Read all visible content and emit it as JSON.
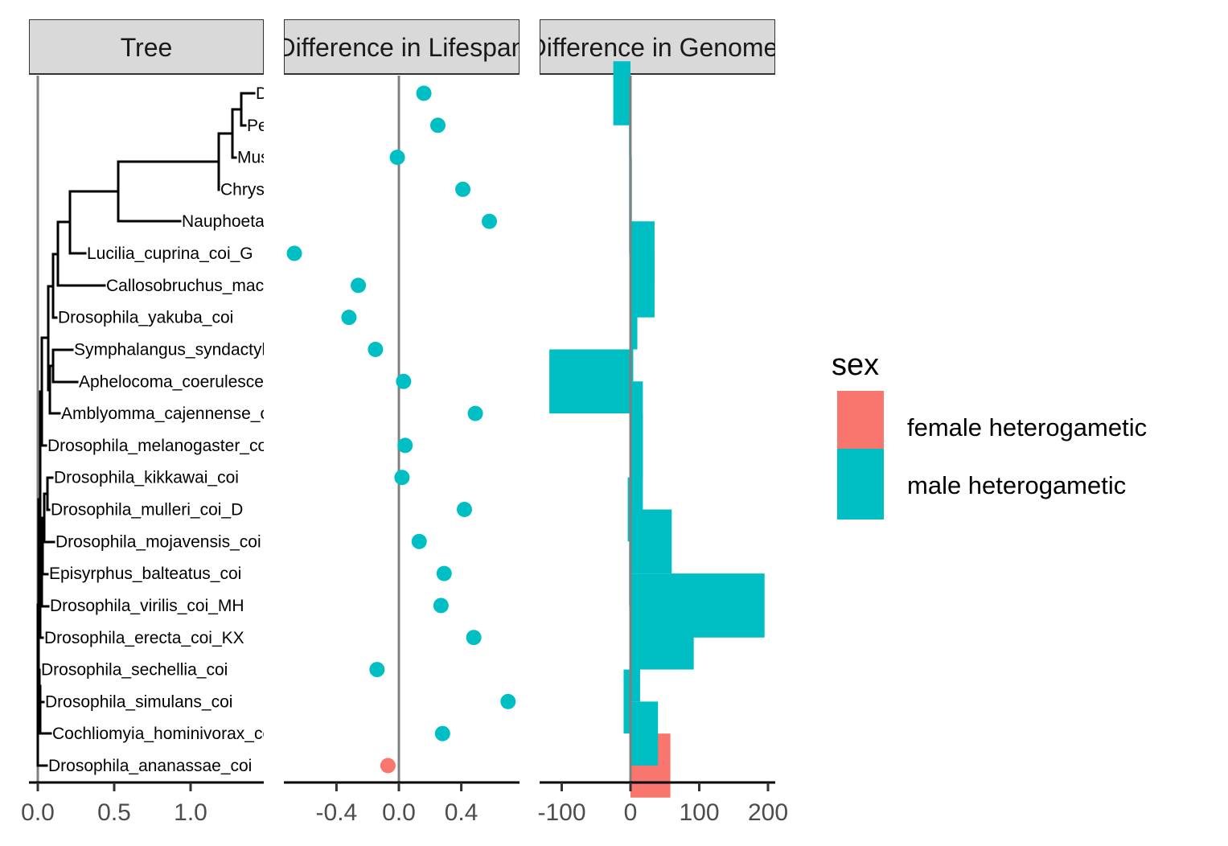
{
  "chart_data": {
    "type": "faceted",
    "facets": [
      "Tree",
      "Difference in Lifespan",
      "Difference in Genome"
    ],
    "tips": [
      "Drosophila_ananassae_coi",
      "Cochliomyia_hominivorax_coi",
      "Drosophila_simulans_coi",
      "Drosophila_sechellia_coi",
      "Drosophila_erecta_coi_KX",
      "Drosophila_virilis_coi_MH",
      "Episyrphus_balteatus_coi",
      "Drosophila_mojavensis_coi",
      "Drosophila_mulleri_coi_D",
      "Drosophila_kikkawai_coi",
      "Drosophila_melanogaster_coi",
      "Amblyomma_cajennense_coi",
      "Aphelocoma_coerulescens_coi",
      "Symphalangus_syndactylus_coi",
      "Drosophila_yakuba_coi",
      "Callosobruchus_maculatus_coi",
      "Lucilia_cuprina_coi_G",
      "Nauphoeta_cinerea_coi",
      "Chrysomya_coi",
      "Musca_coi",
      "Periplaneta_coi",
      "D_coi"
    ],
    "tree": {
      "xlim": [
        0,
        1.48
      ],
      "xticks": [
        0,
        0.5,
        1.0
      ],
      "xtick_labels": [
        "0.0",
        "0.5",
        "1.0"
      ],
      "edges": [
        {
          "parent": 0.0,
          "child": 0.0,
          "from": 1,
          "to": 21
        },
        {
          "parent": 0.0,
          "child": 0.02,
          "from": 2,
          "to": 21
        },
        {
          "parent": 0.0,
          "child": 0.05,
          "from": 3,
          "to": 20
        },
        {
          "parent": 0.02,
          "child": 0.04,
          "from": 4,
          "to": 19
        },
        {
          "parent": 0.04,
          "child": 0.06,
          "from": 5,
          "to": 18
        },
        {
          "parent": 0.06,
          "child": 0.1,
          "from": 6,
          "to": 17
        }
      ]
    },
    "lifespan": {
      "xlim": [
        -0.72,
        0.78
      ],
      "xticks": [
        -0.4,
        0.0,
        0.4
      ],
      "xtick_labels": [
        "-0.4",
        "0.0",
        "0.4"
      ],
      "values": [
        -0.07,
        0.28,
        0.7,
        -0.14,
        0.48,
        0.27,
        0.29,
        0.13,
        0.42,
        0.02,
        0.04,
        0.49,
        0.03,
        -0.15,
        -0.32,
        -0.26,
        -0.67,
        0.58,
        0.41,
        -0.01,
        0.25,
        0.16
      ],
      "sex": [
        "female",
        "male",
        "male",
        "male",
        "male",
        "male",
        "male",
        "male",
        "male",
        "male",
        "male",
        "male",
        "male",
        "male",
        "male",
        "male",
        "male",
        "male",
        "male",
        "male",
        "male",
        "male"
      ]
    },
    "genome": {
      "xlim": [
        -132,
        210
      ],
      "xticks": [
        -100,
        0,
        100,
        200
      ],
      "xtick_labels": [
        "-100",
        "0",
        "100",
        "200"
      ],
      "values": [
        58,
        40,
        -10,
        14,
        92,
        195,
        -2,
        60,
        -4,
        18,
        18,
        18,
        -118,
        4,
        10,
        35,
        35,
        -2,
        2,
        -2,
        -2,
        -25
      ],
      "sex": [
        "female",
        "male",
        "male",
        "male",
        "male",
        "male",
        "male",
        "male",
        "male",
        "male",
        "male",
        "male",
        "male",
        "male",
        "male",
        "male",
        "male",
        "male",
        "male",
        "male",
        "male",
        "male"
      ]
    },
    "legend": {
      "title": "sex",
      "position": "right",
      "items": [
        {
          "key": "female",
          "label": "female heterogametic",
          "color": "#F8766D"
        },
        {
          "key": "male",
          "label": "male heterogametic",
          "color": "#00BFC4"
        }
      ]
    }
  }
}
